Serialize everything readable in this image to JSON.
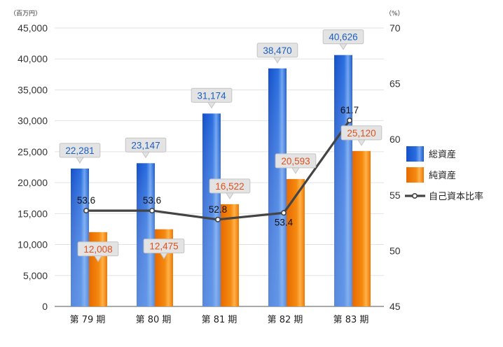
{
  "chart_data": {
    "type": "bar",
    "categories": [
      "第 79 期",
      "第 80 期",
      "第 81 期",
      "第 82 期",
      "第 83 期"
    ],
    "series": [
      {
        "name": "総資産",
        "type": "bar",
        "axis": "left",
        "values": [
          22281,
          23147,
          31174,
          38470,
          40626
        ],
        "labels": [
          "22,281",
          "23,147",
          "31,174",
          "38,470",
          "40,626"
        ],
        "color": "#1a5fd6"
      },
      {
        "name": "純資産",
        "type": "bar",
        "axis": "left",
        "values": [
          12008,
          12475,
          16522,
          20593,
          25120
        ],
        "labels": [
          "12,008",
          "12,475",
          "16,522",
          "20,593",
          "25,120"
        ],
        "color": "#f07c00"
      },
      {
        "name": "自己資本比率",
        "type": "line",
        "axis": "right",
        "values": [
          53.6,
          53.6,
          52.8,
          53.4,
          61.7
        ],
        "labels": [
          "53.6",
          "53.6",
          "52.8",
          "53.4",
          "61.7"
        ],
        "color": "#444444"
      }
    ],
    "left_axis": {
      "unit": "（百万円）",
      "range": [
        0,
        45000
      ],
      "ticks": [
        "0",
        "5,000",
        "10,000",
        "15,000",
        "20,000",
        "25,000",
        "30,000",
        "35,000",
        "40,000",
        "45,000"
      ]
    },
    "right_axis": {
      "unit": "（%）",
      "range": [
        45,
        70
      ],
      "ticks": [
        "45",
        "50",
        "55",
        "60",
        "65",
        "70"
      ]
    },
    "grid": true,
    "legend_position": "right",
    "label_colors": {
      "total": "#1a5fc0",
      "net": "#e0501a",
      "callout_fill": "#e3e3e3",
      "callout_stroke": "#c4c4c4"
    }
  }
}
